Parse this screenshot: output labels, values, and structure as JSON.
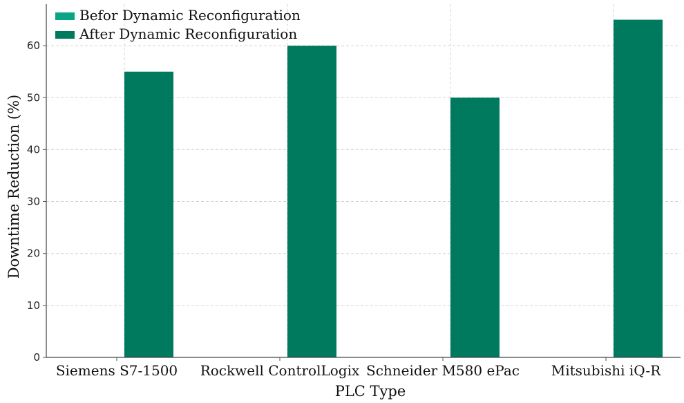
{
  "chart_data": {
    "type": "bar",
    "title": "",
    "xlabel": "PLC Type",
    "ylabel": "Downtime Reduction (%)",
    "categories": [
      "Siemens S7-1500",
      "Rockwell ControlLogix",
      "Schneider M580 ePac",
      "Mitsubishi iQ-R"
    ],
    "series": [
      {
        "name": "Befor Dynamic Reconfiguration",
        "values": [
          0,
          0,
          0,
          0
        ],
        "color": "#0aa487"
      },
      {
        "name": "After Dynamic Reconfiguration",
        "values": [
          55,
          60,
          50,
          65
        ],
        "color": "#007a5e"
      }
    ],
    "ylim": [
      0,
      68
    ],
    "yticks": [
      0,
      10,
      20,
      30,
      40,
      50,
      60
    ],
    "grid": true,
    "legend_position": "top-left"
  }
}
